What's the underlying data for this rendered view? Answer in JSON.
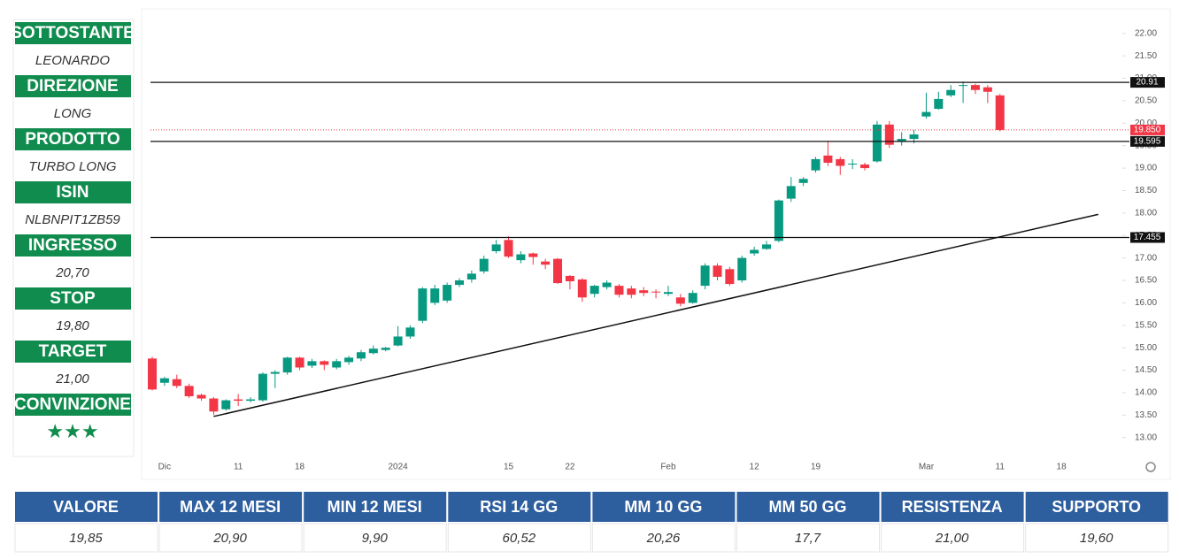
{
  "panel": [
    {
      "label": "SOTTOSTANTE",
      "value": "LEONARDO"
    },
    {
      "label": "DIREZIONE",
      "value": "LONG"
    },
    {
      "label": "PRODOTTO",
      "value": "TURBO LONG"
    },
    {
      "label": "ISIN",
      "value": "NLBNPIT1ZB59"
    },
    {
      "label": "INGRESSO",
      "value": "20,70"
    },
    {
      "label": "STOP",
      "value": "19,80"
    },
    {
      "label": "TARGET",
      "value": "21,00"
    },
    {
      "label": "CONVINZIONE",
      "value": "★★★"
    }
  ],
  "chart_data": {
    "type": "candlestick",
    "categories": [
      null,
      "Dic",
      null,
      null,
      null,
      null,
      null,
      "11",
      null,
      null,
      null,
      null,
      "18",
      null,
      null,
      null,
      null,
      null,
      null,
      null,
      "2024",
      null,
      null,
      null,
      null,
      null,
      null,
      null,
      null,
      "15",
      null,
      null,
      null,
      null,
      "22",
      null,
      null,
      null,
      null,
      null,
      null,
      null,
      "Feb",
      null,
      null,
      null,
      null,
      null,
      null,
      "12",
      null,
      null,
      null,
      null,
      "19",
      null,
      null,
      null,
      null,
      null,
      null,
      null,
      null,
      "Mar",
      null,
      null,
      null,
      null,
      null,
      "11",
      null,
      null,
      null,
      null,
      "18",
      null,
      null,
      null,
      null,
      null
    ],
    "open": [
      14.76,
      14.22,
      14.3,
      14.15,
      13.95,
      13.87,
      13.63,
      13.85,
      13.82,
      13.83,
      14.42,
      14.45,
      14.78,
      14.6,
      14.7,
      14.56,
      14.68,
      14.76,
      14.88,
      14.95,
      15.05,
      15.25,
      15.6,
      16.0,
      16.05,
      16.4,
      16.52,
      16.7,
      17.15,
      17.4,
      16.95,
      17.1,
      16.92,
      16.98,
      16.6,
      16.52,
      16.2,
      16.35,
      16.38,
      16.32,
      16.28,
      16.25,
      16.2,
      16.12,
      16.0,
      16.38,
      16.83,
      16.75,
      16.5,
      17.1,
      17.2,
      17.38,
      18.32,
      18.67,
      18.95,
      19.28,
      19.2,
      19.08,
      19.08,
      19.15,
      19.97,
      19.6,
      19.65,
      20.15,
      20.32,
      20.62,
      20.83,
      20.85,
      20.8,
      20.62,
      null,
      null,
      null,
      null,
      null,
      null,
      null,
      null,
      null,
      null
    ],
    "high": [
      14.8,
      14.35,
      14.4,
      14.2,
      13.98,
      13.9,
      13.85,
      13.97,
      13.9,
      14.45,
      14.5,
      14.8,
      14.8,
      14.75,
      14.72,
      14.75,
      14.82,
      14.95,
      15.05,
      15.02,
      15.48,
      15.5,
      16.35,
      16.4,
      16.45,
      16.55,
      16.72,
      17.05,
      17.4,
      17.48,
      17.15,
      17.12,
      16.98,
      17.0,
      16.62,
      16.55,
      16.4,
      16.5,
      16.42,
      16.38,
      16.35,
      16.3,
      16.38,
      16.2,
      16.28,
      16.88,
      16.88,
      16.8,
      17.05,
      17.25,
      17.38,
      18.3,
      18.8,
      18.8,
      19.25,
      19.6,
      19.25,
      19.2,
      19.12,
      20.05,
      20.05,
      19.8,
      19.85,
      20.68,
      20.7,
      20.85,
      20.93,
      20.88,
      20.85,
      20.65,
      null,
      null,
      null,
      null,
      null,
      null,
      null,
      null,
      null,
      null
    ],
    "low": [
      14.05,
      14.15,
      14.1,
      13.88,
      13.82,
      13.5,
      13.6,
      13.7,
      13.78,
      13.8,
      14.1,
      14.4,
      14.5,
      14.55,
      14.5,
      14.52,
      14.62,
      14.7,
      14.85,
      14.92,
      15.03,
      15.2,
      15.55,
      15.95,
      16.0,
      16.35,
      16.45,
      16.65,
      17.1,
      17.0,
      16.88,
      16.85,
      16.75,
      16.42,
      16.3,
      16.02,
      16.12,
      16.3,
      16.12,
      16.1,
      16.15,
      16.1,
      16.15,
      15.92,
      15.98,
      16.3,
      16.5,
      16.38,
      16.45,
      17.05,
      17.18,
      17.35,
      18.25,
      18.6,
      18.9,
      19.05,
      18.85,
      18.98,
      18.95,
      19.12,
      19.45,
      19.5,
      19.55,
      20.1,
      20.3,
      20.58,
      20.45,
      20.65,
      20.45,
      19.82,
      null,
      null,
      null,
      null,
      null,
      null,
      null,
      null,
      null,
      null
    ],
    "close": [
      14.07,
      14.32,
      14.15,
      13.92,
      13.87,
      13.58,
      13.83,
      13.82,
      13.85,
      14.42,
      14.46,
      14.78,
      14.56,
      14.7,
      14.62,
      14.7,
      14.78,
      14.9,
      14.98,
      15.0,
      15.25,
      15.45,
      16.32,
      16.32,
      16.4,
      16.5,
      16.65,
      16.98,
      17.3,
      17.03,
      17.08,
      17.02,
      16.85,
      16.44,
      16.48,
      16.12,
      16.38,
      16.45,
      16.18,
      16.18,
      16.22,
      16.23,
      16.24,
      15.98,
      16.22,
      16.83,
      16.58,
      16.42,
      17.0,
      17.18,
      17.3,
      18.28,
      18.6,
      18.76,
      19.2,
      19.12,
      19.05,
      19.1,
      19.0,
      19.97,
      19.52,
      19.65,
      19.75,
      20.25,
      20.54,
      20.74,
      20.85,
      20.74,
      20.7,
      19.85,
      null,
      null,
      null,
      null,
      null,
      null,
      null,
      null,
      null,
      null
    ],
    "up_color": "#089981",
    "down_color": "#f23645",
    "ylim": [
      12.6,
      22.35
    ],
    "yticks": [
      {
        "value": 13,
        "label": "13.00"
      },
      {
        "value": 13.5,
        "label": "13.50"
      },
      {
        "value": 14,
        "label": "14.00"
      },
      {
        "value": 14.5,
        "label": "14.50"
      },
      {
        "value": 15,
        "label": "15.00"
      },
      {
        "value": 15.5,
        "label": "15.50"
      },
      {
        "value": 16,
        "label": "16.00"
      },
      {
        "value": 16.5,
        "label": "16.50"
      },
      {
        "value": 17,
        "label": "17.00"
      },
      {
        "value": 17.5,
        "label": "17.50"
      },
      {
        "value": 18,
        "label": "18.00"
      },
      {
        "value": 18.5,
        "label": "18.50"
      },
      {
        "value": 19,
        "label": "19.00"
      },
      {
        "value": 19.5,
        "label": "19.50"
      },
      {
        "value": 20,
        "label": "20.00"
      },
      {
        "value": 20.5,
        "label": "20.50"
      },
      {
        "value": 21,
        "label": "21.00"
      },
      {
        "value": 21.5,
        "label": "21.50"
      },
      {
        "value": 22,
        "label": "22.00"
      }
    ],
    "levels": [
      20.91,
      19.595,
      17.455
    ],
    "last_price": {
      "value": 19.85,
      "label": "19.850"
    },
    "trendline": {
      "x": [
        5,
        77
      ],
      "y": [
        13.47,
        17.97
      ]
    }
  },
  "table": {
    "headers": [
      "VALORE",
      "MAX 12 MESI",
      "MIN 12 MESI",
      "RSI 14 GG",
      "MM 10 GG",
      "MM 50 GG",
      "RESISTENZA",
      "SUPPORTO"
    ],
    "values": [
      "19,85",
      "20,90",
      "9,90",
      "60,52",
      "20,26",
      "17,7",
      "21,00",
      "19,60"
    ]
  }
}
